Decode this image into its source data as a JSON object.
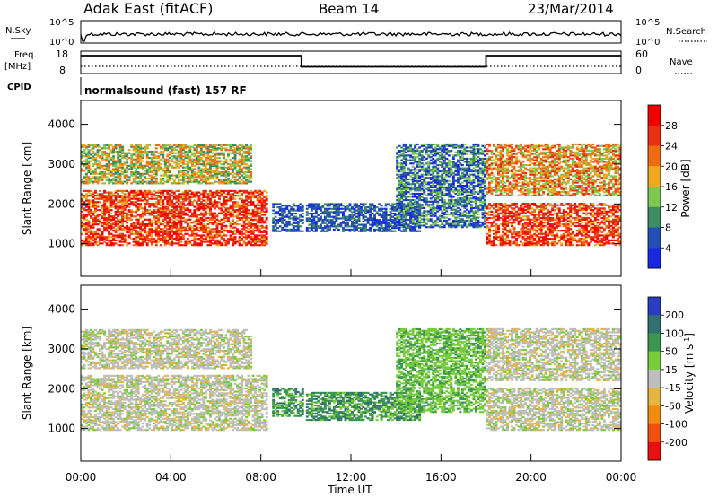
{
  "header": {
    "radar": "Adak East (fitACF)",
    "beam": "Beam 14",
    "date": "23/Mar/2014"
  },
  "top_panels": {
    "nsky_label": "N.Sky",
    "nsky_ticks": [
      "10^5",
      "10^0"
    ],
    "nsearch_label": "N.Search",
    "nsearch_ticks": [
      "10^5",
      "10^0"
    ],
    "freq_label_1": "Freq.",
    "freq_label_2": "[MHz]",
    "freq_ticks": [
      "18",
      "8"
    ],
    "nave_label": "Nave",
    "nave_ticks": [
      "60",
      "0"
    ],
    "cpid_label": "CPID",
    "cpid_text": "normalsound (fast) 157 RF"
  },
  "axes": {
    "ylabel": "Slant Range [km]",
    "xlabel": "Time UT",
    "y_ticks": [
      "1000",
      "2000",
      "3000",
      "4000"
    ],
    "x_ticks": [
      "00:00",
      "04:00",
      "08:00",
      "12:00",
      "16:00",
      "20:00",
      "00:00"
    ]
  },
  "chart_data": [
    {
      "type": "heatmap",
      "panel": "power",
      "title": "",
      "xlabel": "",
      "ylabel": "Slant Range [km]",
      "xlim_hours": [
        0,
        24
      ],
      "ylim": [
        180,
        4600
      ],
      "colorbar": {
        "label": "Power [dB]",
        "ticks": [
          "4",
          "8",
          "12",
          "16",
          "20",
          "24",
          "28"
        ],
        "colors": [
          "#1a28e0",
          "#2450b4",
          "#3c8c64",
          "#7cc850",
          "#f0a81c",
          "#f06c14",
          "#e83014",
          "#f00000"
        ]
      },
      "regions": [
        {
          "t_start": 0.0,
          "t_end": 8.2,
          "r_start": 950,
          "r_end": 2350,
          "level": "high"
        },
        {
          "t_start": 0.0,
          "t_end": 7.5,
          "r_start": 2500,
          "r_end": 3500,
          "level": "medium"
        },
        {
          "t_start": 8.5,
          "t_end": 9.8,
          "r_start": 1300,
          "r_end": 2000,
          "level": "low"
        },
        {
          "t_start": 10.0,
          "t_end": 15.0,
          "r_start": 1300,
          "r_end": 2000,
          "level": "low"
        },
        {
          "t_start": 14.0,
          "t_end": 18.0,
          "r_start": 1400,
          "r_end": 3500,
          "level": "low-medium"
        },
        {
          "t_start": 18.0,
          "t_end": 24.0,
          "r_start": 950,
          "r_end": 2000,
          "level": "high"
        },
        {
          "t_start": 18.0,
          "t_end": 24.0,
          "r_start": 2200,
          "r_end": 3500,
          "level": "medium-high"
        }
      ]
    },
    {
      "type": "heatmap",
      "panel": "velocity",
      "title": "",
      "xlabel": "Time UT",
      "ylabel": "Slant Range [km]",
      "xlim_hours": [
        0,
        24
      ],
      "ylim": [
        180,
        4600
      ],
      "colorbar": {
        "label": "Velocity [m s^-1]",
        "ticks": [
          "200",
          "100",
          "50",
          "15",
          "-15",
          "-50",
          "-100",
          "-200"
        ],
        "colors": [
          "#2a3cc0",
          "#307070",
          "#3c9650",
          "#78cc3c",
          "#bebebe",
          "#e6b440",
          "#f08c10",
          "#f05010",
          "#e81010"
        ]
      },
      "regions": [
        {
          "t_start": 0.0,
          "t_end": 8.2,
          "r_start": 950,
          "r_end": 2350,
          "level": "ground-scatter"
        },
        {
          "t_start": 0.0,
          "t_end": 7.5,
          "r_start": 2500,
          "r_end": 3500,
          "level": "ground-scatter"
        },
        {
          "t_start": 8.5,
          "t_end": 9.8,
          "r_start": 1300,
          "r_end": 2000,
          "level": "toward-medium"
        },
        {
          "t_start": 10.0,
          "t_end": 15.0,
          "r_start": 1200,
          "r_end": 1900,
          "level": "toward-medium"
        },
        {
          "t_start": 14.0,
          "t_end": 18.0,
          "r_start": 1400,
          "r_end": 3500,
          "level": "toward-small"
        },
        {
          "t_start": 18.0,
          "t_end": 24.0,
          "r_start": 950,
          "r_end": 2000,
          "level": "ground-scatter"
        },
        {
          "t_start": 18.0,
          "t_end": 24.0,
          "r_start": 2200,
          "r_end": 3500,
          "level": "ground-scatter"
        }
      ]
    }
  ],
  "freq_series": {
    "x": [
      0,
      9.8,
      9.8,
      18.0,
      18.0,
      24
    ],
    "y": [
      16,
      16,
      11,
      11,
      16,
      16
    ]
  }
}
